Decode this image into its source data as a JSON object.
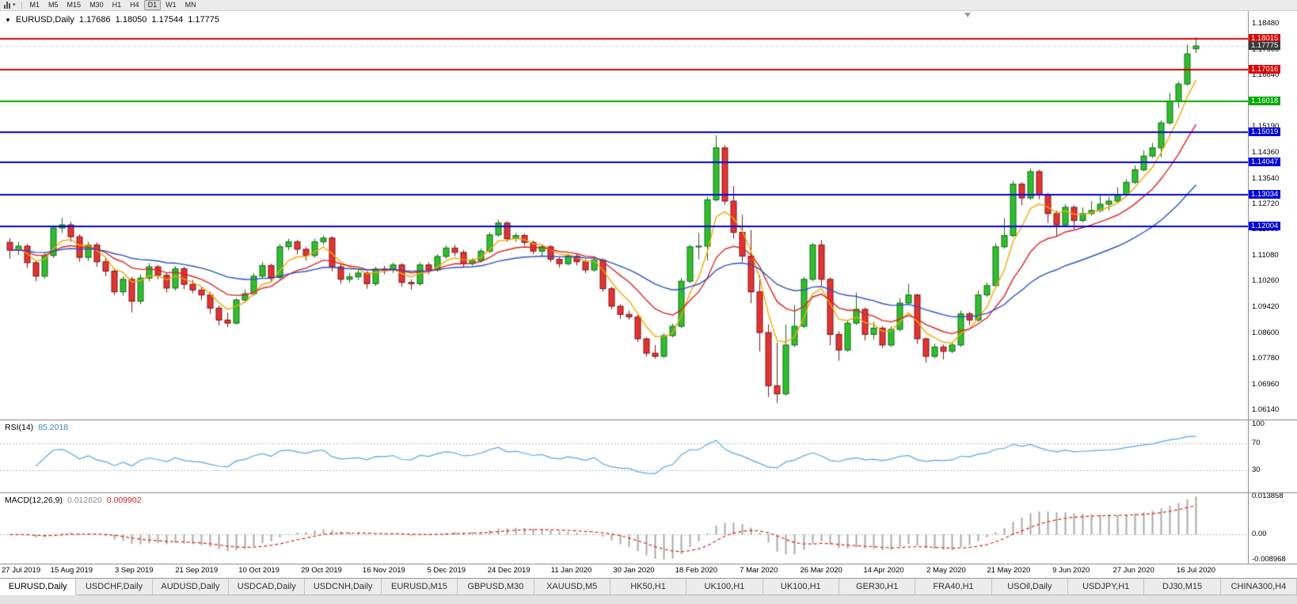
{
  "toolbar": {
    "timeframes": [
      "M1",
      "M5",
      "M15",
      "M30",
      "H1",
      "H4",
      "D1",
      "W1",
      "MN"
    ],
    "active_timeframe": "D1"
  },
  "chart": {
    "symbol_title": "EURUSD,Daily",
    "open": "1.17686",
    "high": "1.18050",
    "low": "1.17544",
    "close": "1.17775",
    "bid_label": "1.17775",
    "bid_price": 1.17775,
    "y_axis_labels": [
      "1.18480",
      "1.17660",
      "1.16840",
      "1.16020",
      "1.15190",
      "1.14360",
      "1.13540",
      "1.12720",
      "1.11900",
      "1.11080",
      "1.10260",
      "1.09420",
      "1.08600",
      "1.07780",
      "1.06960",
      "1.06140"
    ],
    "x_axis_labels": [
      "27 Jul 2019",
      "15 Aug 2019",
      "3 Sep 2019",
      "21 Sep 2019",
      "10 Oct 2019",
      "29 Oct 2019",
      "16 Nov 2019",
      "5 Dec 2019",
      "24 Dec 2019",
      "11 Jan 2020",
      "30 Jan 2020",
      "18 Feb 2020",
      "7 Mar 2020",
      "26 Mar 2020",
      "14 Apr 2020",
      "2 May 2020",
      "21 May 2020",
      "9 Jun 2020",
      "27 Jun 2020",
      "16 Jul 2020"
    ],
    "levels": [
      {
        "price": 1.18015,
        "label": "1.18015",
        "color": "#DD0000"
      },
      {
        "price": 1.17016,
        "label": "1.17016",
        "color": "#DD0000"
      },
      {
        "price": 1.16018,
        "label": "1.16018",
        "color": "#00AA00"
      },
      {
        "price": 1.15019,
        "label": "1.15019",
        "color": "#0000DD"
      },
      {
        "price": 1.14047,
        "label": "1.14047",
        "color": "#0000DD"
      },
      {
        "price": 1.13034,
        "label": "1.13034",
        "color": "#0000DD"
      },
      {
        "price": 1.12004,
        "label": "1.12004",
        "color": "#0000DD"
      }
    ]
  },
  "rsi": {
    "title": "RSI(14)",
    "value": "85.2018",
    "axis_labels": [
      "100",
      "70",
      "30"
    ],
    "axis_values": [
      100,
      70,
      30
    ],
    "guide_levels": [
      70,
      30
    ]
  },
  "macd": {
    "title": "MACD(12,26,9)",
    "value_main": "0.012820",
    "value_signal": "0.009902",
    "axis_labels": [
      "0.013858",
      "0.00",
      "-0.008968"
    ],
    "axis_values": [
      0.013858,
      0,
      -0.008968
    ],
    "scale_max": 0.013858,
    "scale_min": -0.008968
  },
  "tabs": [
    "EURUSD,Daily",
    "USDCHF,Daily",
    "AUDUSD,Daily",
    "USDCAD,Daily",
    "USDCNH,Daily",
    "EURUSD,M15",
    "GBPUSD,M30",
    "XAUUSD,M5",
    "HK50,H1",
    "UK100,H1",
    "UK100,H1",
    "GER30,H1",
    "FRA40,H1",
    "USOil,Daily",
    "USDJPY,H1",
    "DJ30,M15",
    "CHINA300,H4"
  ],
  "active_tab_index": 0,
  "colors": {
    "bull_fill": "#2FBF2F",
    "bull_border": "#156815",
    "bear_fill": "#E23434",
    "bear_border": "#7E1515",
    "ma_fast": "#F2A900",
    "ma_mid": "#E02020",
    "ma_slow": "#2A4FC8",
    "rsi_line": "#56A6E8",
    "macd_hist": "#A8A8A8",
    "macd_signal": "#E02020",
    "bid_label_bg": "#3A3A3A",
    "grid_dotted": "#BDBDBD"
  },
  "chart_data": {
    "type": "candlestick",
    "title": "EURUSD,Daily",
    "symbol": "EURUSD",
    "period": "Daily",
    "ylim": [
      1.0584,
      1.1889
    ],
    "candles": [
      [
        1.115,
        1.1163,
        1.1098,
        1.1125
      ],
      [
        1.1125,
        1.1152,
        1.111,
        1.1138
      ],
      [
        1.1138,
        1.1145,
        1.1068,
        1.1085
      ],
      [
        1.1085,
        1.1092,
        1.1026,
        1.1042
      ],
      [
        1.1042,
        1.1118,
        1.1035,
        1.1108
      ],
      [
        1.1108,
        1.1205,
        1.11,
        1.1196
      ],
      [
        1.1196,
        1.1228,
        1.118,
        1.1206
      ],
      [
        1.1206,
        1.1216,
        1.1152,
        1.1168
      ],
      [
        1.1168,
        1.1176,
        1.1088,
        1.1102
      ],
      [
        1.1102,
        1.1152,
        1.109,
        1.1142
      ],
      [
        1.1142,
        1.115,
        1.1072,
        1.1088
      ],
      [
        1.1088,
        1.1098,
        1.1042,
        1.1058
      ],
      [
        1.1058,
        1.1066,
        1.0982,
        1.0992
      ],
      [
        1.0992,
        1.1042,
        1.098,
        1.1032
      ],
      [
        1.1032,
        1.104,
        1.0926,
        1.0962
      ],
      [
        1.0962,
        1.1048,
        1.0952,
        1.1036
      ],
      [
        1.1036,
        1.1084,
        1.1026,
        1.1072
      ],
      [
        1.1072,
        1.1078,
        1.1032,
        1.1045
      ],
      [
        1.1045,
        1.1052,
        1.099,
        1.1004
      ],
      [
        1.1004,
        1.1074,
        1.0996,
        1.1066
      ],
      [
        1.1066,
        1.1072,
        1.1,
        1.1016
      ],
      [
        1.1016,
        1.103,
        1.0988,
        1.0998
      ],
      [
        1.0998,
        1.1008,
        1.0966,
        1.0982
      ],
      [
        1.0982,
        1.0992,
        1.0922,
        1.094
      ],
      [
        1.094,
        1.0948,
        1.0885,
        1.0902
      ],
      [
        1.0902,
        1.0926,
        1.0879,
        1.0892
      ],
      [
        1.0892,
        1.0972,
        1.0888,
        1.0966
      ],
      [
        1.0966,
        1.1,
        1.0956,
        1.0986
      ],
      [
        1.0986,
        1.1052,
        1.098,
        1.1042
      ],
      [
        1.1042,
        1.1088,
        1.1036,
        1.1076
      ],
      [
        1.1076,
        1.1082,
        1.1022,
        1.1038
      ],
      [
        1.1038,
        1.1145,
        1.1032,
        1.1136
      ],
      [
        1.1136,
        1.1162,
        1.1125,
        1.1152
      ],
      [
        1.1152,
        1.1158,
        1.1112,
        1.1128
      ],
      [
        1.1128,
        1.1136,
        1.1092,
        1.1108
      ],
      [
        1.1108,
        1.1162,
        1.11,
        1.1152
      ],
      [
        1.1152,
        1.1172,
        1.1142,
        1.1164
      ],
      [
        1.1164,
        1.117,
        1.1058,
        1.1072
      ],
      [
        1.1072,
        1.108,
        1.1018,
        1.1032
      ],
      [
        1.1032,
        1.1052,
        1.1022,
        1.104
      ],
      [
        1.104,
        1.1062,
        1.103,
        1.1052
      ],
      [
        1.1052,
        1.1058,
        1.1002,
        1.1018
      ],
      [
        1.1018,
        1.1072,
        1.101,
        1.1065
      ],
      [
        1.1065,
        1.1075,
        1.1048,
        1.1062
      ],
      [
        1.1062,
        1.1086,
        1.1052,
        1.1078
      ],
      [
        1.1078,
        1.1084,
        1.1008,
        1.1022
      ],
      [
        1.1022,
        1.1032,
        1.0998,
        1.1018
      ],
      [
        1.1018,
        1.1086,
        1.1012,
        1.1078
      ],
      [
        1.1078,
        1.1086,
        1.1048,
        1.1062
      ],
      [
        1.1062,
        1.1112,
        1.1056,
        1.1105
      ],
      [
        1.1105,
        1.114,
        1.1098,
        1.1132
      ],
      [
        1.1132,
        1.1142,
        1.1106,
        1.1118
      ],
      [
        1.1118,
        1.1126,
        1.107,
        1.1082
      ],
      [
        1.1082,
        1.11,
        1.1076,
        1.1092
      ],
      [
        1.1092,
        1.113,
        1.1086,
        1.1122
      ],
      [
        1.1122,
        1.1182,
        1.1116,
        1.1174
      ],
      [
        1.1174,
        1.1222,
        1.1168,
        1.1212
      ],
      [
        1.1212,
        1.1218,
        1.1152,
        1.1162
      ],
      [
        1.1162,
        1.118,
        1.1152,
        1.1172
      ],
      [
        1.1172,
        1.1178,
        1.114,
        1.115
      ],
      [
        1.115,
        1.1156,
        1.1112,
        1.1122
      ],
      [
        1.1122,
        1.1142,
        1.1106,
        1.1136
      ],
      [
        1.1136,
        1.1142,
        1.1086,
        1.1096
      ],
      [
        1.1096,
        1.1102,
        1.107,
        1.1082
      ],
      [
        1.1082,
        1.1114,
        1.1076,
        1.1106
      ],
      [
        1.1106,
        1.1112,
        1.1076,
        1.1088
      ],
      [
        1.1088,
        1.1096,
        1.1052,
        1.1062
      ],
      [
        1.1062,
        1.11,
        1.1056,
        1.1094
      ],
      [
        1.1094,
        1.1098,
        1.0992,
        1.1002
      ],
      [
        1.1002,
        1.1008,
        1.0936,
        1.0946
      ],
      [
        1.0946,
        1.0952,
        1.0906,
        1.092
      ],
      [
        1.092,
        1.0932,
        1.0902,
        1.0912
      ],
      [
        1.0912,
        1.0918,
        1.0832,
        1.0842
      ],
      [
        1.0842,
        1.0848,
        1.0786,
        1.0796
      ],
      [
        1.0796,
        1.0822,
        1.0778,
        1.0786
      ],
      [
        1.0786,
        1.086,
        1.0782,
        1.0852
      ],
      [
        1.0852,
        1.089,
        1.0846,
        1.0882
      ],
      [
        1.0882,
        1.1036,
        1.0876,
        1.1026
      ],
      [
        1.1026,
        1.1142,
        1.102,
        1.1136
      ],
      [
        1.1136,
        1.118,
        1.1096,
        1.1138
      ],
      [
        1.1138,
        1.1296,
        1.1092,
        1.1286
      ],
      [
        1.1286,
        1.1492,
        1.128,
        1.1452
      ],
      [
        1.1452,
        1.146,
        1.127,
        1.1282
      ],
      [
        1.1282,
        1.133,
        1.1162,
        1.1182
      ],
      [
        1.1182,
        1.1238,
        1.1088,
        1.1106
      ],
      [
        1.1106,
        1.119,
        1.0956,
        1.0992
      ],
      [
        1.0992,
        1.1044,
        1.0802,
        1.0862
      ],
      [
        1.0862,
        1.0888,
        1.0656,
        1.0692
      ],
      [
        1.0692,
        1.083,
        1.0637,
        1.0666
      ],
      [
        1.0666,
        1.0888,
        1.066,
        1.0822
      ],
      [
        1.0822,
        1.095,
        1.0816,
        1.0882
      ],
      [
        1.0882,
        1.104,
        1.0876,
        1.1032
      ],
      [
        1.1032,
        1.1148,
        1.1026,
        1.1142
      ],
      [
        1.1142,
        1.1158,
        1.1012,
        1.1032
      ],
      [
        1.1032,
        1.1038,
        1.0822,
        1.0856
      ],
      [
        1.0856,
        1.0866,
        1.0772,
        1.0806
      ],
      [
        1.0806,
        1.0902,
        1.08,
        1.0892
      ],
      [
        1.0892,
        1.099,
        1.0886,
        1.0936
      ],
      [
        1.0936,
        1.0942,
        1.0836,
        1.0856
      ],
      [
        1.0856,
        1.0896,
        1.084,
        1.0876
      ],
      [
        1.0876,
        1.0882,
        1.0812,
        1.0822
      ],
      [
        1.0822,
        1.0882,
        1.0816,
        1.0872
      ],
      [
        1.0872,
        1.0972,
        1.0866,
        1.0956
      ],
      [
        1.0956,
        1.1018,
        1.095,
        1.0982
      ],
      [
        1.0982,
        1.0986,
        1.0826,
        1.0842
      ],
      [
        1.0842,
        1.0846,
        1.0766,
        1.0786
      ],
      [
        1.0786,
        1.0826,
        1.078,
        1.0816
      ],
      [
        1.0816,
        1.0824,
        1.0776,
        1.0802
      ],
      [
        1.0802,
        1.0832,
        1.0796,
        1.0822
      ],
      [
        1.0822,
        1.0932,
        1.0816,
        1.0922
      ],
      [
        1.0922,
        1.0928,
        1.0886,
        1.0902
      ],
      [
        1.0902,
        1.0996,
        1.0896,
        1.0982
      ],
      [
        1.0982,
        1.1022,
        1.0976,
        1.1012
      ],
      [
        1.1012,
        1.1146,
        1.1006,
        1.1136
      ],
      [
        1.1136,
        1.1228,
        1.113,
        1.1172
      ],
      [
        1.1172,
        1.1346,
        1.1166,
        1.1336
      ],
      [
        1.1336,
        1.1342,
        1.1268,
        1.1292
      ],
      [
        1.1292,
        1.1386,
        1.1286,
        1.1376
      ],
      [
        1.1376,
        1.1382,
        1.1288,
        1.1302
      ],
      [
        1.1302,
        1.1308,
        1.1212,
        1.1242
      ],
      [
        1.1242,
        1.1252,
        1.1168,
        1.1206
      ],
      [
        1.1206,
        1.1272,
        1.12,
        1.1262
      ],
      [
        1.1262,
        1.1268,
        1.1192,
        1.122
      ],
      [
        1.122,
        1.1262,
        1.1214,
        1.1242
      ],
      [
        1.1242,
        1.1282,
        1.1236,
        1.1252
      ],
      [
        1.1252,
        1.1302,
        1.1246,
        1.1272
      ],
      [
        1.1272,
        1.1296,
        1.1252,
        1.1282
      ],
      [
        1.1282,
        1.1326,
        1.1276,
        1.1302
      ],
      [
        1.1302,
        1.1352,
        1.1296,
        1.1342
      ],
      [
        1.1342,
        1.1396,
        1.1336,
        1.1382
      ],
      [
        1.1382,
        1.1444,
        1.1376,
        1.1426
      ],
      [
        1.1426,
        1.1468,
        1.142,
        1.1452
      ],
      [
        1.1452,
        1.154,
        1.1422,
        1.1532
      ],
      [
        1.1532,
        1.1628,
        1.1526,
        1.1602
      ],
      [
        1.1602,
        1.1664,
        1.158,
        1.1656
      ],
      [
        1.1656,
        1.1782,
        1.165,
        1.1752
      ],
      [
        1.17686,
        1.1805,
        1.17544,
        1.17775
      ]
    ]
  }
}
